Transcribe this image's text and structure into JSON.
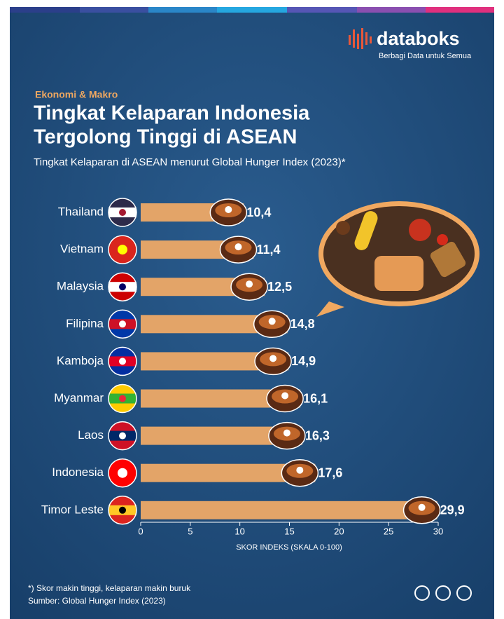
{
  "header": {
    "brand": "databoks",
    "tagline": "Berbagi Data untuk Semua",
    "section": "Ekonomi & Makro"
  },
  "chart_data": {
    "type": "bar",
    "orientation": "horizontal",
    "title": [
      "Tingkat Kelaparan Indonesia",
      "Tergolong Tinggi di ASEAN"
    ],
    "subtitle": "Tingkat Kelaparan di ASEAN menurut Global Hunger Index (2023)*",
    "categories": [
      "Thailand",
      "Vietnam",
      "Malaysia",
      "Filipina",
      "Kamboja",
      "Myanmar",
      "Laos",
      "Indonesia",
      "Timor Leste"
    ],
    "values": [
      10.4,
      11.4,
      12.5,
      14.8,
      14.9,
      16.1,
      16.3,
      17.6,
      29.9
    ],
    "value_labels": [
      "10,4",
      "11,4",
      "12,5",
      "14,8",
      "14,9",
      "16,1",
      "16,3",
      "17,6",
      "29,9"
    ],
    "color": "#e3a468",
    "xlim": [
      0,
      30
    ],
    "xticks": [
      0,
      5,
      10,
      15,
      20,
      25,
      30
    ],
    "xlabel": "SKOR INDEKS (SKALA 0-100)",
    "grid": false
  },
  "footer": {
    "note": "*) Skor makin tinggi, kelaparan makin buruk",
    "source": "Sumber: Global Hunger Index (2023)"
  }
}
